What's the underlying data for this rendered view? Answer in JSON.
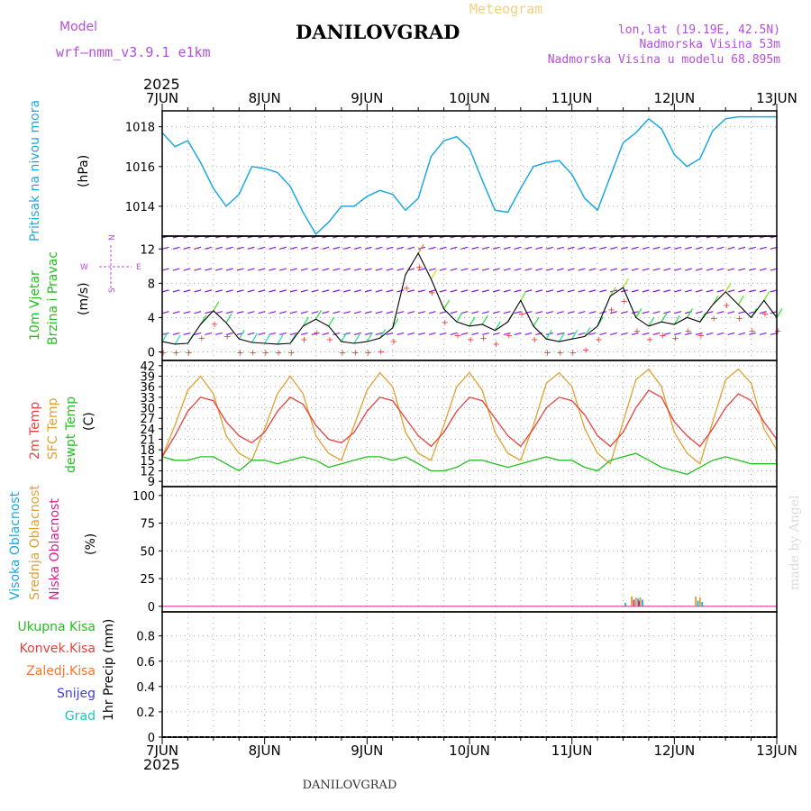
{
  "header": {
    "model_label": "Model",
    "model_name": "wrf—nmm_v3.9.1  e1km",
    "station": "DANILOVGRAD",
    "meteogram": "Meteogram",
    "lonlat": "lon,lat (19.19E, 42.5N)",
    "elevation": "Nadmorska Visina 53m",
    "model_elevation": "Nadmorska Visina u modelu 68.895m",
    "year": "2025",
    "footer_station": "DANILOVGRAD",
    "watermark": "made by Angel"
  },
  "time_axis": {
    "labels": [
      "7JUN",
      "8JUN",
      "9JUN",
      "10JUN",
      "11JUN",
      "12JUN",
      "13JUN"
    ]
  },
  "colors": {
    "pressure": "#1ea8e0",
    "temp2m": "#e8403c",
    "sfc": "#e0a030",
    "dewpt": "#22c01e",
    "wind_fill": "#8a1fd0",
    "high_cloud": "#1ea8e0",
    "mid_cloud": "#e0a030",
    "low_cloud": "#d81e8c",
    "total_precip": "#22c01e",
    "conv_precip": "#e8403c",
    "frozen_precip": "#f07830",
    "snow": "#4040e0",
    "graupel": "#20c0c0"
  },
  "chart_data": [
    {
      "type": "line",
      "panel": "pressure",
      "ylabel": [
        "Pritisak na nivou mora",
        "(hPa)"
      ],
      "yticks": [
        1014,
        1016,
        1018
      ],
      "ylim": [
        1012.5,
        1018.8
      ],
      "grid": true,
      "series": [
        {
          "x": [
            0,
            3,
            6,
            9,
            12,
            15,
            18,
            21,
            24,
            27,
            30,
            33,
            36,
            39,
            42,
            45,
            48,
            51,
            54,
            57,
            60,
            63,
            66,
            69,
            72,
            75,
            78,
            81,
            84,
            87,
            90,
            93,
            96,
            99,
            102,
            105,
            108,
            111,
            114,
            117,
            120,
            123,
            126,
            129,
            132,
            135,
            138,
            141,
            144
          ],
          "values": [
            1017.7,
            1017.0,
            1017.3,
            1016.2,
            1014.9,
            1014.0,
            1014.6,
            1016.0,
            1015.9,
            1015.7,
            1015.0,
            1013.7,
            1012.6,
            1013.2,
            1014.0,
            1014.0,
            1014.5,
            1014.8,
            1014.6,
            1013.8,
            1014.4,
            1016.5,
            1017.3,
            1017.5,
            1016.9,
            1015.3,
            1013.8,
            1013.7,
            1014.9,
            1016.0,
            1016.2,
            1016.3,
            1015.6,
            1014.4,
            1013.8,
            1015.5,
            1017.2,
            1017.7,
            1018.4,
            1017.9,
            1016.6,
            1016.0,
            1016.4,
            1017.8,
            1018.4,
            1018.5,
            1018.5,
            1018.5,
            1018.5
          ]
        }
      ]
    },
    {
      "type": "line",
      "panel": "wind",
      "ylabel": [
        "10m Vjetar",
        "Brzina i Pravac",
        "(m/s)"
      ],
      "compass": {
        "n": "N",
        "s": "S",
        "e": "E",
        "w": "W"
      },
      "yticks": [
        0,
        4,
        8,
        12
      ],
      "ylim": [
        -1,
        13.5
      ],
      "grid": true,
      "series": [
        {
          "name": "wind speed",
          "x": [
            0,
            3,
            6,
            9,
            12,
            15,
            18,
            21,
            24,
            27,
            30,
            33,
            36,
            39,
            42,
            45,
            48,
            51,
            54,
            57,
            60,
            63,
            66,
            69,
            72,
            75,
            78,
            81,
            84,
            87,
            90,
            93,
            96,
            99,
            102,
            105,
            108,
            111,
            114,
            117,
            120,
            123,
            126,
            129,
            132,
            135,
            138,
            141,
            144
          ],
          "values": [
            1.2,
            0.9,
            1.0,
            3.2,
            4.8,
            3.4,
            1.5,
            1.1,
            1.0,
            0.9,
            1.0,
            3.0,
            3.8,
            3.0,
            1.2,
            1.0,
            1.2,
            1.6,
            2.8,
            9.0,
            11.5,
            8.5,
            5.0,
            3.5,
            3.0,
            3.2,
            2.5,
            3.5,
            6.0,
            3.0,
            1.5,
            1.2,
            1.5,
            1.8,
            3.0,
            6.5,
            7.5,
            4.0,
            3.0,
            3.5,
            3.2,
            4.0,
            3.5,
            5.5,
            7.0,
            5.5,
            4.0,
            6.0,
            4.0
          ]
        }
      ]
    },
    {
      "type": "line",
      "panel": "temperature",
      "ylabel": [
        "2m Temp",
        "SFC Temp",
        "dewpt Temp",
        "(C)"
      ],
      "yticks": [
        9,
        12,
        15,
        18,
        21,
        24,
        27,
        30,
        33,
        36,
        39,
        42
      ],
      "ylim": [
        7.5,
        43.5
      ],
      "grid": true,
      "series": [
        {
          "name": "2m Temp",
          "x": [
            0,
            3,
            6,
            9,
            12,
            15,
            18,
            21,
            24,
            27,
            30,
            33,
            36,
            39,
            42,
            45,
            48,
            51,
            54,
            57,
            60,
            63,
            66,
            69,
            72,
            75,
            78,
            81,
            84,
            87,
            90,
            93,
            96,
            99,
            102,
            105,
            108,
            111,
            114,
            117,
            120,
            123,
            126,
            129,
            132,
            135,
            138,
            141,
            144
          ],
          "values": [
            16,
            22,
            29,
            33,
            32,
            26,
            22,
            20,
            23,
            29,
            33,
            31,
            25,
            21,
            20,
            23,
            29,
            33,
            32,
            27,
            22,
            19,
            23,
            29,
            33,
            32,
            27,
            22,
            19,
            24,
            30,
            33,
            32,
            28,
            22,
            19,
            23,
            30,
            35,
            33,
            26,
            22,
            19,
            24,
            30,
            34,
            32,
            26,
            21
          ]
        },
        {
          "name": "SFC Temp",
          "x": [
            0,
            3,
            6,
            9,
            12,
            15,
            18,
            21,
            24,
            27,
            30,
            33,
            36,
            39,
            42,
            45,
            48,
            51,
            54,
            57,
            60,
            63,
            66,
            69,
            72,
            75,
            78,
            81,
            84,
            87,
            90,
            93,
            96,
            99,
            102,
            105,
            108,
            111,
            114,
            117,
            120,
            123,
            126,
            129,
            132,
            135,
            138,
            141,
            144
          ],
          "values": [
            16,
            25,
            35,
            39,
            34,
            22,
            17,
            15,
            24,
            34,
            39,
            34,
            22,
            17,
            15,
            25,
            35,
            40,
            36,
            23,
            17,
            15,
            25,
            36,
            40,
            35,
            23,
            17,
            15,
            25,
            37,
            40,
            36,
            24,
            17,
            14,
            26,
            38,
            41,
            36,
            23,
            17,
            14,
            26,
            38,
            41,
            37,
            24,
            18
          ]
        },
        {
          "name": "dewpt Temp",
          "x": [
            0,
            3,
            6,
            9,
            12,
            15,
            18,
            21,
            24,
            27,
            30,
            33,
            36,
            39,
            42,
            45,
            48,
            51,
            54,
            57,
            60,
            63,
            66,
            69,
            72,
            75,
            78,
            81,
            84,
            87,
            90,
            93,
            96,
            99,
            102,
            105,
            108,
            111,
            114,
            117,
            120,
            123,
            126,
            129,
            132,
            135,
            138,
            141,
            144
          ],
          "values": [
            16,
            15,
            15,
            16,
            16,
            14,
            12,
            15,
            15,
            14,
            15,
            16,
            15,
            13,
            14,
            15,
            16,
            16,
            15,
            16,
            14,
            12,
            12,
            13,
            15,
            15,
            14,
            13,
            14,
            15,
            16,
            15,
            15,
            13,
            12,
            15,
            16,
            17,
            15,
            13,
            12,
            11,
            13,
            15,
            16,
            15,
            14,
            14,
            14
          ]
        }
      ]
    },
    {
      "type": "bar",
      "panel": "clouds",
      "ylabel": [
        "Visoka Oblacnost",
        "Srednja Oblacnost",
        "Niska Oblacnost",
        "(%)"
      ],
      "yticks": [
        0,
        25,
        50,
        75,
        100
      ],
      "ylim": [
        -5,
        108
      ],
      "grid": true,
      "series": [
        {
          "name": "Visoka Oblacnost",
          "x": [
            108.5,
            111.5,
            112.5,
            125.5,
            126.5
          ],
          "values": [
            3,
            7,
            6,
            5,
            4
          ]
        },
        {
          "name": "Srednja Oblacnost",
          "x": [
            110,
            111,
            112,
            125,
            126
          ],
          "values": [
            9,
            8,
            8,
            9,
            8
          ]
        },
        {
          "name": "Niska Oblacnost",
          "x": [
            110.5,
            111.7
          ],
          "values": [
            6,
            5
          ]
        }
      ]
    },
    {
      "type": "bar",
      "panel": "precip",
      "ylabel": [
        "1hr Precip (mm)"
      ],
      "legend": [
        "Ukupna Kisa",
        "Konvek.Kisa",
        "Zaledj.Kisa",
        "Snijeg",
        "Grad"
      ],
      "yticks": [
        0,
        0.2,
        0.4,
        0.6,
        0.8
      ],
      "ylim": [
        0,
        0.99
      ],
      "grid": true,
      "series": []
    }
  ]
}
